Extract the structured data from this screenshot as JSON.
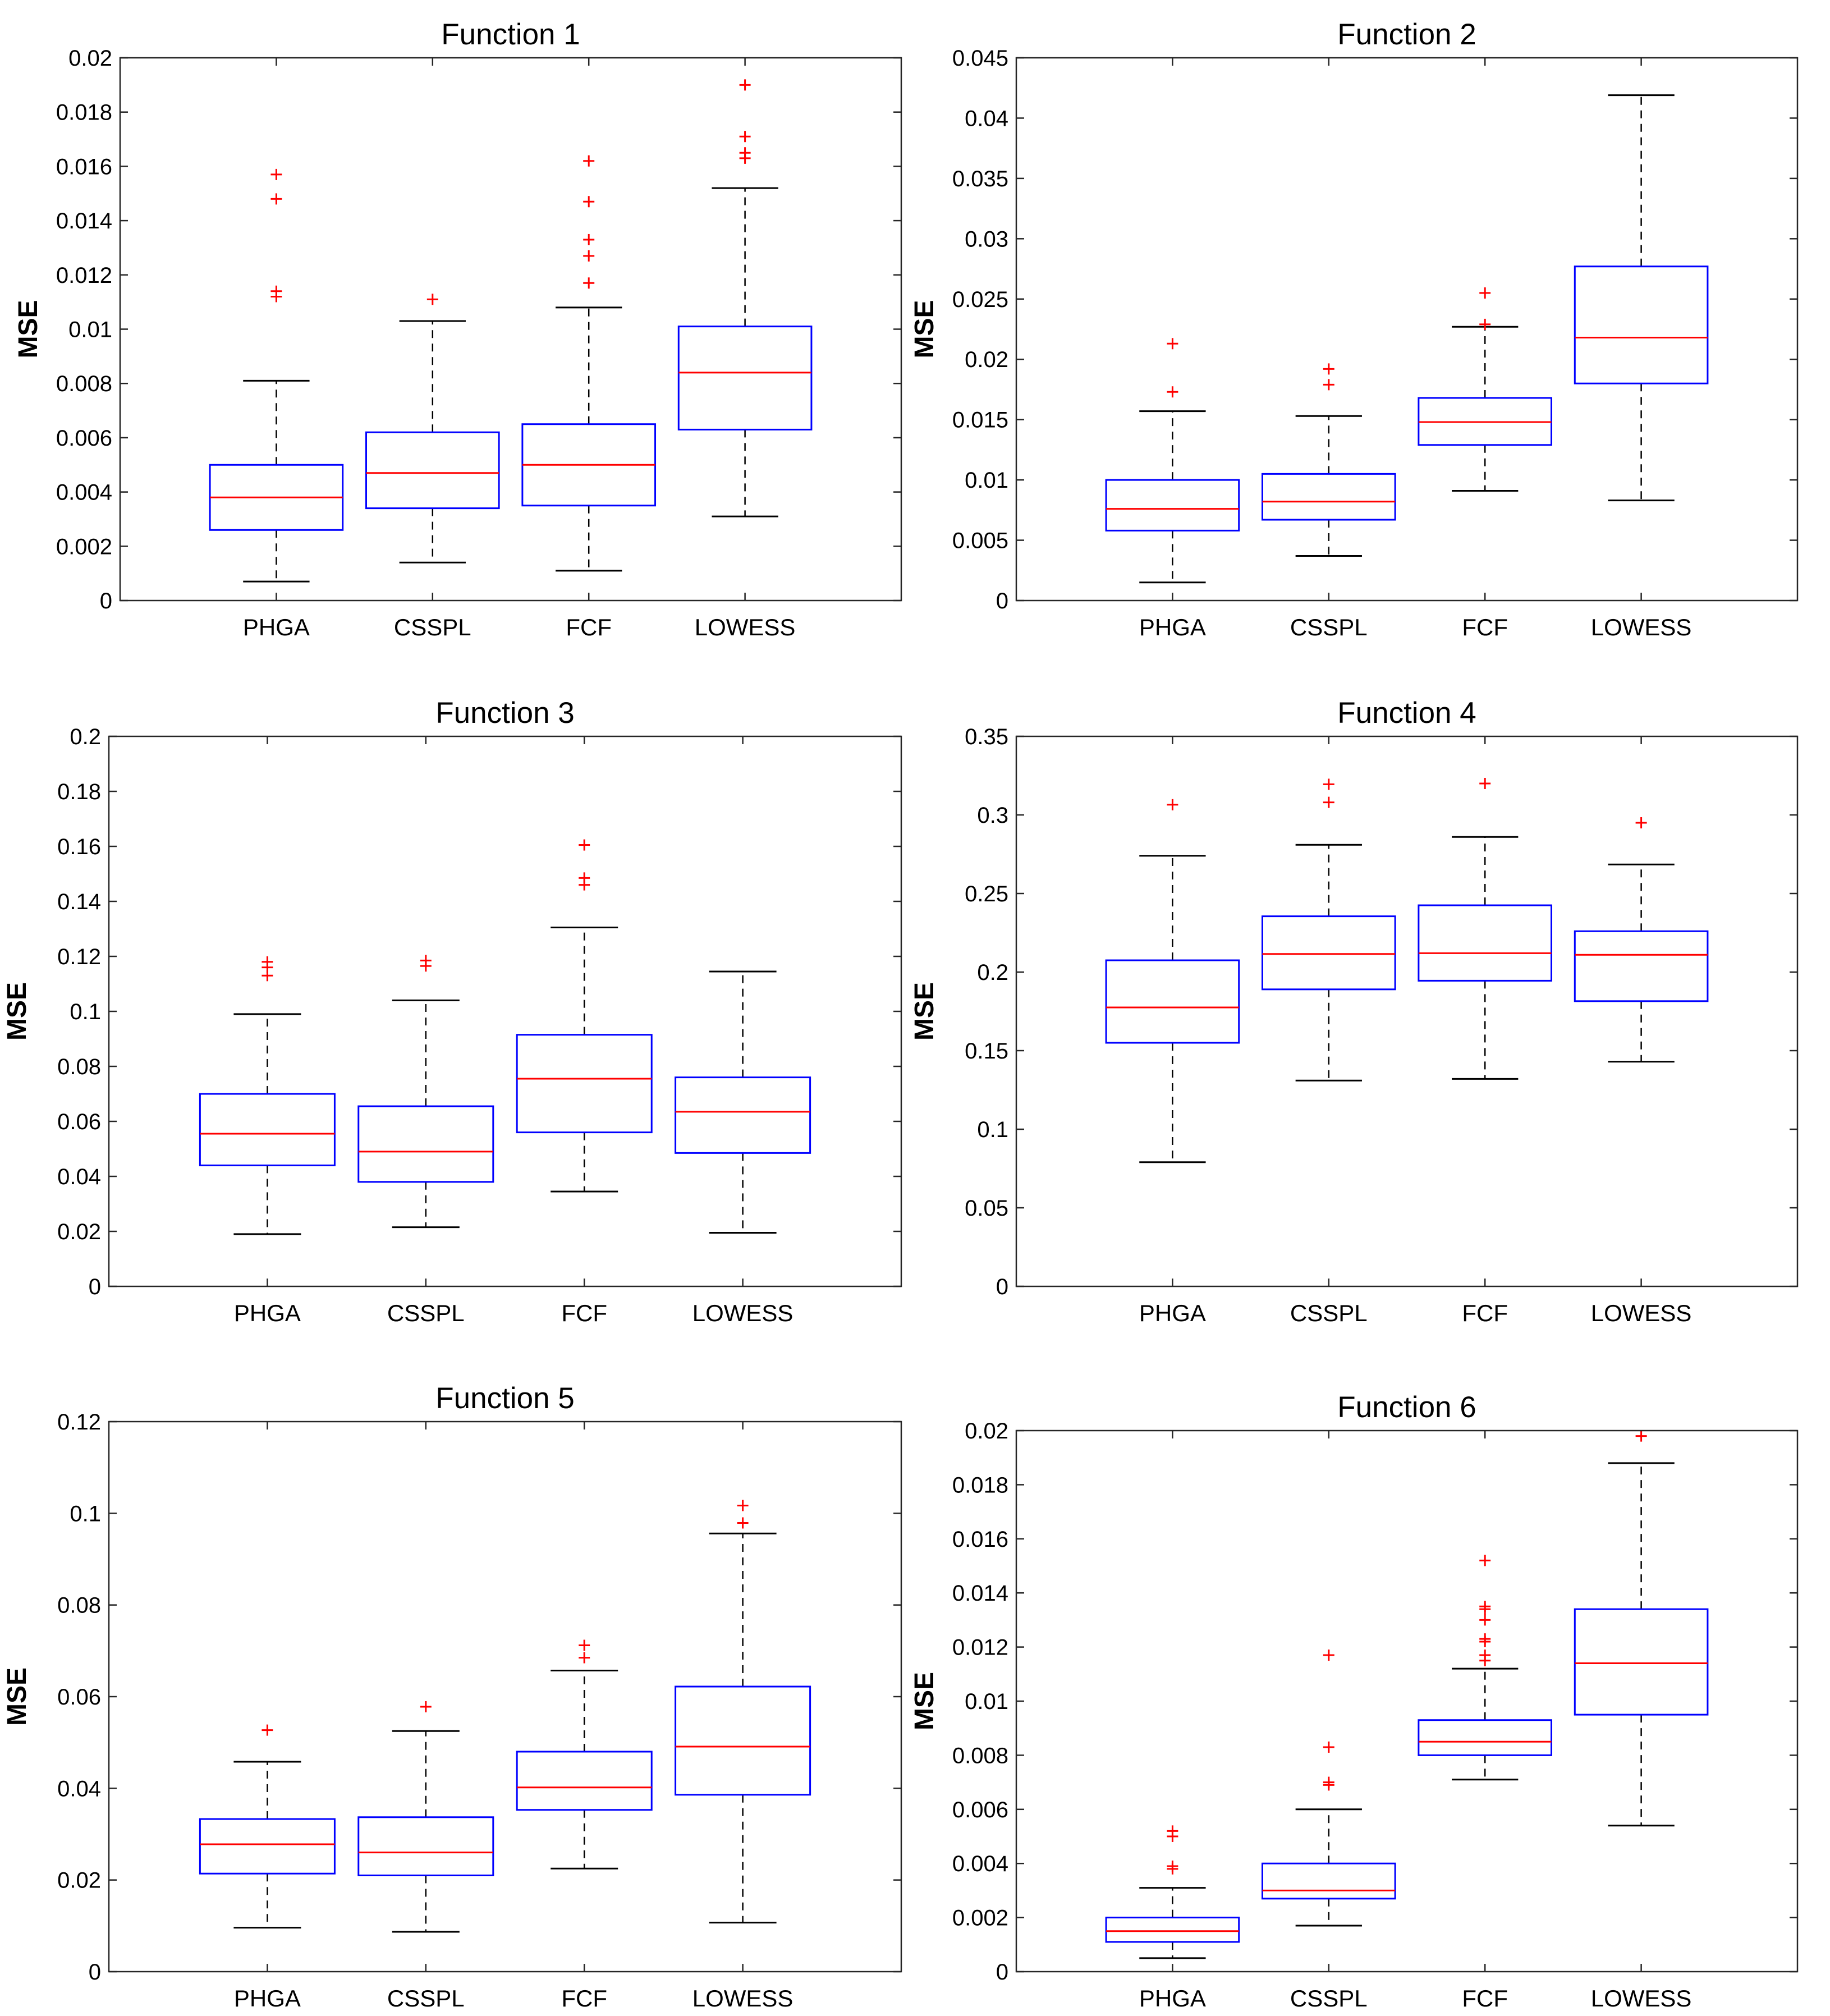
{
  "figure": {
    "ylabel": "MSE"
  },
  "colors": {
    "box": "#0000ff",
    "median": "#ff0000",
    "whisker": "#000000",
    "outlier": "#ff0000",
    "axis": "#262626",
    "text": "#000000"
  },
  "chart_data": [
    {
      "type": "boxplot",
      "title": "Function 1",
      "ylabel": "MSE",
      "ylim": [
        0,
        0.02
      ],
      "yticks": [
        0,
        0.002,
        0.004,
        0.006,
        0.008,
        0.01,
        0.012,
        0.014,
        0.016,
        0.018,
        0.02
      ],
      "ytick_labels": [
        "0",
        "0.002",
        "0.004",
        "0.006",
        "0.008",
        "0.01",
        "0.012",
        "0.014",
        "0.016",
        "0.018",
        "0.02"
      ],
      "categories": [
        "PHGA",
        "CSSPL",
        "FCF",
        "LOWESS"
      ],
      "boxes": [
        {
          "whisker_low": 0.0007,
          "q1": 0.0026,
          "median": 0.0038,
          "q3": 0.005,
          "whisker_high": 0.0081,
          "outliers": [
            0.0157,
            0.0148,
            0.0114,
            0.0112
          ]
        },
        {
          "whisker_low": 0.0014,
          "q1": 0.0034,
          "median": 0.0047,
          "q3": 0.0062,
          "whisker_high": 0.0103,
          "outliers": [
            0.0111
          ]
        },
        {
          "whisker_low": 0.0011,
          "q1": 0.0035,
          "median": 0.005,
          "q3": 0.0065,
          "whisker_high": 0.0108,
          "outliers": [
            0.0162,
            0.0147,
            0.0133,
            0.0127,
            0.0117
          ]
        },
        {
          "whisker_low": 0.0031,
          "q1": 0.0063,
          "median": 0.0084,
          "q3": 0.0101,
          "whisker_high": 0.0152,
          "outliers": [
            0.019,
            0.0171,
            0.0165,
            0.0163
          ]
        }
      ]
    },
    {
      "type": "boxplot",
      "title": "Function 2",
      "ylabel": "MSE",
      "ylim": [
        0,
        0.045
      ],
      "yticks": [
        0,
        0.005,
        0.01,
        0.015,
        0.02,
        0.025,
        0.03,
        0.035,
        0.04,
        0.045
      ],
      "ytick_labels": [
        "0",
        "0.005",
        "0.01",
        "0.015",
        "0.02",
        "0.025",
        "0.03",
        "0.035",
        "0.04",
        "0.045"
      ],
      "categories": [
        "PHGA",
        "CSSPL",
        "FCF",
        "LOWESS"
      ],
      "boxes": [
        {
          "whisker_low": 0.0015,
          "q1": 0.0058,
          "median": 0.0076,
          "q3": 0.01,
          "whisker_high": 0.0157,
          "outliers": [
            0.0213,
            0.0173
          ]
        },
        {
          "whisker_low": 0.0037,
          "q1": 0.0067,
          "median": 0.0082,
          "q3": 0.0105,
          "whisker_high": 0.0153,
          "outliers": [
            0.0192,
            0.0179
          ]
        },
        {
          "whisker_low": 0.0091,
          "q1": 0.0129,
          "median": 0.0148,
          "q3": 0.0168,
          "whisker_high": 0.0227,
          "outliers": [
            0.0255,
            0.0229
          ]
        },
        {
          "whisker_low": 0.0083,
          "q1": 0.018,
          "median": 0.0218,
          "q3": 0.0277,
          "whisker_high": 0.0419,
          "outliers": []
        }
      ]
    },
    {
      "type": "boxplot",
      "title": "Function 3",
      "ylabel": "MSE",
      "ylim": [
        0,
        0.2
      ],
      "yticks": [
        0,
        0.02,
        0.04,
        0.06,
        0.08,
        0.1,
        0.12,
        0.14,
        0.16,
        0.18,
        0.2
      ],
      "ytick_labels": [
        "0",
        "0.02",
        "0.04",
        "0.06",
        "0.08",
        "0.1",
        "0.12",
        "0.14",
        "0.16",
        "0.18",
        "0.2"
      ],
      "categories": [
        "PHGA",
        "CSSPL",
        "FCF",
        "LOWESS"
      ],
      "boxes": [
        {
          "whisker_low": 0.019,
          "q1": 0.044,
          "median": 0.0555,
          "q3": 0.07,
          "whisker_high": 0.099,
          "outliers": [
            0.118,
            0.116,
            0.113
          ]
        },
        {
          "whisker_low": 0.0215,
          "q1": 0.038,
          "median": 0.049,
          "q3": 0.0655,
          "whisker_high": 0.104,
          "outliers": [
            0.1185,
            0.1165
          ]
        },
        {
          "whisker_low": 0.0345,
          "q1": 0.056,
          "median": 0.0755,
          "q3": 0.0915,
          "whisker_high": 0.1305,
          "outliers": [
            0.1605,
            0.1485,
            0.146
          ]
        },
        {
          "whisker_low": 0.0195,
          "q1": 0.0485,
          "median": 0.0635,
          "q3": 0.076,
          "whisker_high": 0.1145,
          "outliers": []
        }
      ]
    },
    {
      "type": "boxplot",
      "title": "Function 4",
      "ylabel": "MSE",
      "ylim": [
        0,
        0.35
      ],
      "yticks": [
        0,
        0.05,
        0.1,
        0.15,
        0.2,
        0.25,
        0.3,
        0.35
      ],
      "ytick_labels": [
        "0",
        "0.05",
        "0.1",
        "0.15",
        "0.2",
        "0.25",
        "0.3",
        "0.35"
      ],
      "categories": [
        "PHGA",
        "CSSPL",
        "FCF",
        "LOWESS"
      ],
      "boxes": [
        {
          "whisker_low": 0.079,
          "q1": 0.155,
          "median": 0.1775,
          "q3": 0.2075,
          "whisker_high": 0.274,
          "outliers": [
            0.3065
          ]
        },
        {
          "whisker_low": 0.131,
          "q1": 0.189,
          "median": 0.2115,
          "q3": 0.2355,
          "whisker_high": 0.281,
          "outliers": [
            0.3195,
            0.308
          ]
        },
        {
          "whisker_low": 0.132,
          "q1": 0.1945,
          "median": 0.212,
          "q3": 0.2425,
          "whisker_high": 0.286,
          "outliers": [
            0.32
          ]
        },
        {
          "whisker_low": 0.143,
          "q1": 0.1815,
          "median": 0.211,
          "q3": 0.226,
          "whisker_high": 0.2685,
          "outliers": [
            0.295
          ]
        }
      ]
    },
    {
      "type": "boxplot",
      "title": "Function 5",
      "ylabel": "MSE",
      "ylim": [
        0,
        0.12
      ],
      "yticks": [
        0,
        0.02,
        0.04,
        0.06,
        0.08,
        0.1,
        0.12
      ],
      "ytick_labels": [
        "0",
        "0.02",
        "0.04",
        "0.06",
        "0.08",
        "0.1",
        "0.12"
      ],
      "categories": [
        "PHGA",
        "CSSPL",
        "FCF",
        "LOWESS"
      ],
      "boxes": [
        {
          "whisker_low": 0.0096,
          "q1": 0.0214,
          "median": 0.0278,
          "q3": 0.0333,
          "whisker_high": 0.0458,
          "outliers": [
            0.0527
          ]
        },
        {
          "whisker_low": 0.0087,
          "q1": 0.021,
          "median": 0.026,
          "q3": 0.0337,
          "whisker_high": 0.0525,
          "outliers": [
            0.0578
          ]
        },
        {
          "whisker_low": 0.0225,
          "q1": 0.0353,
          "median": 0.0402,
          "q3": 0.048,
          "whisker_high": 0.0657,
          "outliers": [
            0.0712,
            0.0685
          ]
        },
        {
          "whisker_low": 0.0107,
          "q1": 0.0386,
          "median": 0.0491,
          "q3": 0.0622,
          "whisker_high": 0.0956,
          "outliers": [
            0.1017,
            0.0979
          ]
        }
      ]
    },
    {
      "type": "boxplot",
      "title": "Function 6",
      "ylabel": "MSE",
      "ylim": [
        0,
        0.02
      ],
      "yticks": [
        0,
        0.002,
        0.004,
        0.006,
        0.008,
        0.01,
        0.012,
        0.014,
        0.016,
        0.018,
        0.02
      ],
      "ytick_labels": [
        "0",
        "0.002",
        "0.004",
        "0.006",
        "0.008",
        "0.01",
        "0.012",
        "0.014",
        "0.016",
        "0.018",
        "0.02"
      ],
      "categories": [
        "PHGA",
        "CSSPL",
        "FCF",
        "LOWESS"
      ],
      "boxes": [
        {
          "whisker_low": 0.0005,
          "q1": 0.0011,
          "median": 0.0015,
          "q3": 0.002,
          "whisker_high": 0.0031,
          "outliers": [
            0.0052,
            0.005,
            0.0039,
            0.0038
          ]
        },
        {
          "whisker_low": 0.0017,
          "q1": 0.0027,
          "median": 0.003,
          "q3": 0.004,
          "whisker_high": 0.006,
          "outliers": [
            0.0117,
            0.0083,
            0.007,
            0.0069
          ]
        },
        {
          "whisker_low": 0.0071,
          "q1": 0.008,
          "median": 0.0085,
          "q3": 0.0093,
          "whisker_high": 0.0112,
          "outliers": [
            0.0152,
            0.0135,
            0.0134,
            0.013,
            0.0123,
            0.0122,
            0.0117,
            0.0115
          ]
        },
        {
          "whisker_low": 0.0054,
          "q1": 0.0095,
          "median": 0.0114,
          "q3": 0.0134,
          "whisker_high": 0.0188,
          "outliers": [
            0.0198
          ]
        }
      ]
    }
  ]
}
